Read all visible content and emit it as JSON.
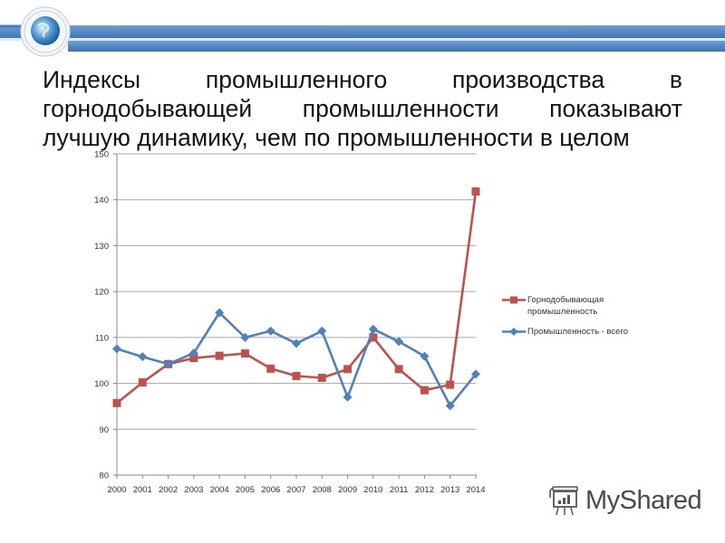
{
  "title": {
    "lines": [
      "Индексы промышленного производства в",
      "горнодобывающей промышленности показывают",
      "лучшую динамику, чем по промышленности в целом"
    ]
  },
  "banner": {
    "icon": "globe-icon",
    "colors": {
      "bar": "#4a7fbf",
      "bar_light": "#7aa6d6"
    }
  },
  "legend": {
    "items": [
      {
        "label_line1": "Горнодобывающая",
        "label_line2": "промышленность",
        "color": "#c0504d",
        "marker": "square"
      },
      {
        "label_line1": "Промышленность - всего",
        "label_line2": "",
        "color": "#4f81bd",
        "marker": "diamond"
      }
    ]
  },
  "watermark": {
    "text": "MyShared",
    "icon": "presentation-board-icon"
  },
  "chart_data": {
    "type": "line",
    "title": "",
    "xlabel": "",
    "ylabel": "",
    "x": [
      "2000",
      "2001",
      "2002",
      "2003",
      "2004",
      "2005",
      "2006",
      "2007",
      "2008",
      "2009",
      "2010",
      "2011",
      "2012",
      "2013",
      "2014"
    ],
    "series": [
      {
        "name": "Горнодобывающая промышленность",
        "color": "#c0504d",
        "marker": "square",
        "values": [
          95.7,
          100.2,
          104.2,
          105.5,
          106.0,
          106.5,
          103.2,
          101.6,
          101.2,
          103.1,
          110.0,
          103.1,
          98.5,
          99.7,
          141.8
        ]
      },
      {
        "name": "Промышленность - всего",
        "color": "#4f81bd",
        "marker": "diamond",
        "values": [
          107.5,
          105.8,
          104.2,
          106.6,
          115.4,
          110.0,
          111.4,
          108.7,
          111.4,
          97.0,
          111.8,
          109.1,
          105.9,
          95.1,
          102.0
        ]
      }
    ],
    "ylim": [
      80,
      150
    ],
    "yticks": [
      80,
      90,
      100,
      110,
      120,
      130,
      140,
      150
    ],
    "grid": true,
    "legend_position": "right"
  }
}
